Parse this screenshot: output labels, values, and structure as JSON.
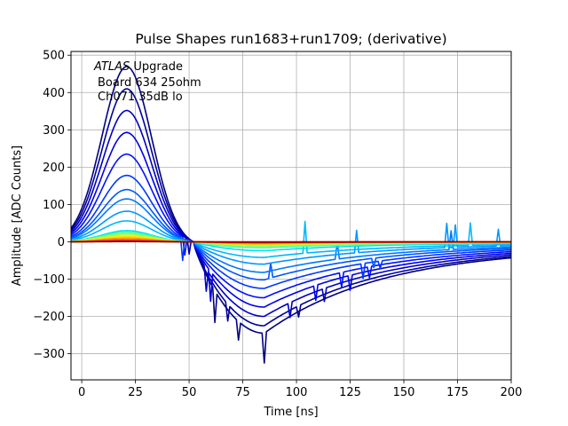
{
  "chart_data": {
    "type": "line",
    "title": "Pulse Shapes run1683+run1709; (derivative)",
    "xlabel": "Time [ns]",
    "ylabel": "Amplitude [ADC Counts]",
    "xlim": [
      -5,
      200
    ],
    "ylim": [
      -370,
      510
    ],
    "xticks": [
      0,
      25,
      50,
      75,
      100,
      125,
      150,
      175,
      200
    ],
    "yticks": [
      -300,
      -200,
      -100,
      0,
      100,
      200,
      300,
      400,
      500
    ],
    "xtick_labels": [
      "0",
      "25",
      "50",
      "75",
      "100",
      "125",
      "150",
      "175",
      "200"
    ],
    "ytick_labels": [
      "−300",
      "−200",
      "−100",
      "0",
      "100",
      "200",
      "300",
      "400",
      "500"
    ],
    "grid": true,
    "legend": "none",
    "annotation": {
      "line1_italic": "ATLAS",
      "line1_rest": " Upgrade",
      "line2": "Board 634 25ohm",
      "line3": "Ch071 35dB lo"
    },
    "colormap": "jet",
    "pulse_model": {
      "peak_time_ns": 21,
      "zero_crossing_ns": 52,
      "undershoot_min_ns": 85
    },
    "series": [
      {
        "name": "p1",
        "peak": 470,
        "undershoot": -245,
        "color": "#00007f"
      },
      {
        "name": "p2",
        "peak": 410,
        "undershoot": -225,
        "color": "#00009a"
      },
      {
        "name": "p3",
        "peak": 352,
        "undershoot": -200,
        "color": "#0000c0"
      },
      {
        "name": "p4",
        "peak": 293,
        "undershoot": -175,
        "color": "#0000e8"
      },
      {
        "name": "p5",
        "peak": 235,
        "undershoot": -150,
        "color": "#0010ff"
      },
      {
        "name": "p6",
        "peak": 178,
        "undershoot": -125,
        "color": "#0038ff"
      },
      {
        "name": "p7",
        "peak": 140,
        "undershoot": -102,
        "color": "#0058ff"
      },
      {
        "name": "p8",
        "peak": 115,
        "undershoot": -82,
        "color": "#0078ff"
      },
      {
        "name": "p9",
        "peak": 82,
        "undershoot": -60,
        "color": "#0098ff"
      },
      {
        "name": "p10",
        "peak": 56,
        "undershoot": -42,
        "color": "#00b8ff"
      },
      {
        "name": "p11",
        "peak": 30,
        "undershoot": -24,
        "color": "#00e0f0"
      },
      {
        "name": "p12",
        "peak": 26,
        "undershoot": -16,
        "color": "#40ffb0"
      },
      {
        "name": "p13",
        "peak": 22,
        "undershoot": -12,
        "color": "#80ff70"
      },
      {
        "name": "p14",
        "peak": 18,
        "undershoot": -9,
        "color": "#c0ff30"
      },
      {
        "name": "p15",
        "peak": 14,
        "undershoot": -7,
        "color": "#ffe000"
      },
      {
        "name": "p16",
        "peak": 10,
        "undershoot": -5,
        "color": "#ffa000"
      },
      {
        "name": "p17",
        "peak": 6,
        "undershoot": -3,
        "color": "#ff6000"
      },
      {
        "name": "p18",
        "peak": 3,
        "undershoot": -2,
        "color": "#ff2000"
      },
      {
        "name": "p19",
        "peak": 1.5,
        "undershoot": -1,
        "color": "#c00000"
      },
      {
        "name": "p20",
        "peak": 0.5,
        "undershoot": -0.5,
        "color": "#800000"
      }
    ],
    "spikes": [
      {
        "t": 47,
        "dv": -60,
        "series": "p6"
      },
      {
        "t": 48,
        "dv": -45,
        "series": "p5"
      },
      {
        "t": 50,
        "dv": -40,
        "series": "p2"
      },
      {
        "t": 58,
        "dv": -60,
        "series": "p3"
      },
      {
        "t": 60,
        "dv": -80,
        "series": "p4"
      },
      {
        "t": 62,
        "dv": -85,
        "series": "p1"
      },
      {
        "t": 68,
        "dv": -45,
        "series": "p2"
      },
      {
        "t": 73,
        "dv": -50,
        "series": "p1"
      },
      {
        "t": 85,
        "dv": -80,
        "series": "p1"
      },
      {
        "t": 88,
        "dv": 40,
        "series": "p7"
      },
      {
        "t": 97,
        "dv": -40,
        "series": "p3"
      },
      {
        "t": 101,
        "dv": -30,
        "series": "p2"
      },
      {
        "t": 104,
        "dv": 85,
        "series": "p10"
      },
      {
        "t": 109,
        "dv": -40,
        "series": "p4"
      },
      {
        "t": 113,
        "dv": -35,
        "series": "p3"
      },
      {
        "t": 119,
        "dv": 45,
        "series": "p8"
      },
      {
        "t": 121,
        "dv": -40,
        "series": "p5"
      },
      {
        "t": 125,
        "dv": -40,
        "series": "p4"
      },
      {
        "t": 128,
        "dv": 60,
        "series": "p9"
      },
      {
        "t": 131,
        "dv": -40,
        "series": "p6"
      },
      {
        "t": 134,
        "dv": -30,
        "series": "p5"
      },
      {
        "t": 136,
        "dv": -25,
        "series": "p7"
      },
      {
        "t": 139,
        "dv": -20,
        "series": "p6"
      },
      {
        "t": 170,
        "dv": 65,
        "series": "p9"
      },
      {
        "t": 172,
        "dv": 50,
        "series": "p8"
      },
      {
        "t": 174,
        "dv": 60,
        "series": "p9"
      },
      {
        "t": 181,
        "dv": 60,
        "series": "p10"
      },
      {
        "t": 194,
        "dv": 45,
        "series": "p9"
      }
    ]
  }
}
